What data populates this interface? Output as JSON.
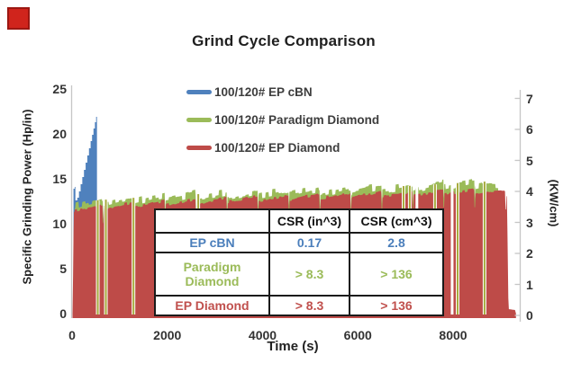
{
  "decoration": {
    "red_square_color": "#d0241c"
  },
  "chart_data": {
    "type": "area",
    "title": "Grind Cycle Comparison",
    "xlabel": "Time (s)",
    "ylabel_left": "Specific Grinding Power (Hp/in)",
    "ylabel_right": "(KW/cm)",
    "x_ticks": [
      0,
      2000,
      4000,
      6000,
      8000
    ],
    "xlim": [
      0,
      9350
    ],
    "ylim_left": [
      0,
      25
    ],
    "y_ticks_left": [
      25,
      20,
      15,
      10,
      5,
      0
    ],
    "ylim_right": [
      0,
      7
    ],
    "y_ticks_right": [
      0,
      1,
      2,
      3,
      4,
      5,
      6,
      7
    ],
    "grid": false,
    "legend_position": "top-center",
    "axis_color": "#c6c6c6",
    "series": [
      {
        "name": "100/120# EP cBN",
        "color": "#4f81bd",
        "interp": "step",
        "points": [
          [
            15,
            0
          ],
          [
            30,
            13.9
          ],
          [
            55,
            14.1
          ],
          [
            70,
            12.6
          ],
          [
            110,
            12.9
          ],
          [
            145,
            13.6
          ],
          [
            180,
            14.4
          ],
          [
            215,
            15.2
          ],
          [
            250,
            16.0
          ],
          [
            285,
            16.8
          ],
          [
            320,
            17.6
          ],
          [
            355,
            18.4
          ],
          [
            390,
            19.2
          ],
          [
            420,
            19.9
          ],
          [
            450,
            20.6
          ],
          [
            480,
            21.3
          ],
          [
            505,
            21.9
          ],
          [
            520,
            21.9
          ],
          [
            523,
            0
          ]
        ]
      },
      {
        "name": "100/120# Paradigm Diamond",
        "color": "#9bbb59",
        "interp": "linear",
        "envelope": [
          [
            25,
            0
          ],
          [
            55,
            12.4
          ],
          [
            500,
            12.7
          ],
          [
            1000,
            12.9
          ],
          [
            2000,
            13.2
          ],
          [
            3000,
            13.5
          ],
          [
            4000,
            13.7
          ],
          [
            5000,
            13.9
          ],
          [
            6000,
            14.1
          ],
          [
            7000,
            14.3
          ],
          [
            8000,
            14.6
          ],
          [
            8700,
            14.8
          ],
          [
            8950,
            14.5
          ],
          [
            9000,
            0
          ]
        ],
        "tooth_amp": 0.45,
        "tooth_period_s": 70
      },
      {
        "name": "100/120# EP Diamond",
        "color": "#be4b48",
        "interp": "linear",
        "envelope": [
          [
            10,
            0
          ],
          [
            35,
            11.9
          ],
          [
            500,
            12.1
          ],
          [
            1000,
            12.3
          ],
          [
            2000,
            12.6
          ],
          [
            3000,
            12.9
          ],
          [
            4000,
            13.1
          ],
          [
            5000,
            13.3
          ],
          [
            6000,
            13.5
          ],
          [
            7000,
            13.6
          ],
          [
            8000,
            13.8
          ],
          [
            8800,
            13.9
          ],
          [
            9130,
            13.7
          ],
          [
            9165,
            0.5
          ],
          [
            9300,
            0.4
          ],
          [
            9320,
            0
          ]
        ],
        "tooth_amp": 0.18,
        "tooth_period_s": 55
      }
    ],
    "grind_segment_period_s": 650,
    "segment_scallop_hp": 0.55,
    "segment_notch_hp": 1.5,
    "cycle_breaks": {
      "green_line_color": "#a6aa3c",
      "green_lines_s": [
        540,
        710,
        1290,
        2650,
        6960,
        7090,
        7620,
        8095,
        8660
      ],
      "white_gaps_s": [
        7240,
        7980
      ]
    }
  },
  "table": {
    "col_headers": [
      "",
      "CSR (in^3)",
      "CSR (cm^3)"
    ],
    "rows": [
      {
        "label": "EP cBN",
        "color": "#4a7ebb",
        "values": [
          "0.17",
          "2.8"
        ]
      },
      {
        "label": "Paradigm Diamond",
        "color": "#9bbb59",
        "values": [
          "> 8.3",
          "> 136"
        ]
      },
      {
        "label": "EP Diamond",
        "color": "#c0504d",
        "values": [
          "> 8.3",
          "> 136"
        ]
      }
    ]
  }
}
